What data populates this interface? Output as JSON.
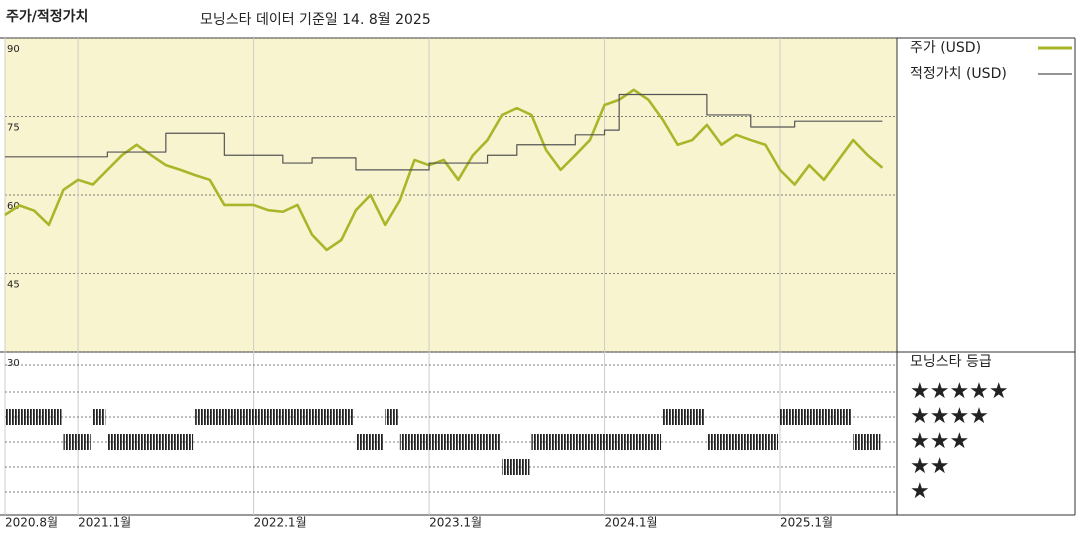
{
  "chart_data": {
    "type": "line",
    "title": "주가/적정가치",
    "subtitle": "모닝스타 데이터 기준일 14. 8월 2025",
    "xlim": [
      "2020-08",
      "2025-09"
    ],
    "xticks": [
      {
        "value": "2020-08",
        "label": "2020.8월"
      },
      {
        "value": "2021-01",
        "label": "2021.1월"
      },
      {
        "value": "2022-01",
        "label": "2022.1월"
      },
      {
        "value": "2023-01",
        "label": "2023.1월"
      },
      {
        "value": "2024-01",
        "label": "2024.1월"
      },
      {
        "value": "2025-01",
        "label": "2025.1월"
      }
    ],
    "ylim": [
      30,
      90
    ],
    "yticks": [
      90,
      75,
      60,
      45,
      30
    ],
    "grid": true,
    "series": [
      {
        "name": "주가 (USD)",
        "color": "#a9b62a",
        "step": false,
        "x": [
          "2020-08",
          "2020-09",
          "2020-10",
          "2020-11",
          "2020-12",
          "2021-01",
          "2021-02",
          "2021-03",
          "2021-04",
          "2021-05",
          "2021-06",
          "2021-07",
          "2021-08",
          "2021-09",
          "2021-10",
          "2021-11",
          "2021-12",
          "2022-01",
          "2022-02",
          "2022-03",
          "2022-04",
          "2022-05",
          "2022-06",
          "2022-07",
          "2022-08",
          "2022-09",
          "2022-10",
          "2022-11",
          "2022-12",
          "2023-01",
          "2023-02",
          "2023-03",
          "2023-04",
          "2023-05",
          "2023-06",
          "2023-07",
          "2023-08",
          "2023-09",
          "2023-10",
          "2023-11",
          "2023-12",
          "2024-01",
          "2024-02",
          "2024-03",
          "2024-04",
          "2024-05",
          "2024-06",
          "2024-07",
          "2024-08",
          "2024-09",
          "2024-10",
          "2024-11",
          "2024-12",
          "2025-01",
          "2025-02",
          "2025-03",
          "2025-04",
          "2025-05",
          "2025-06",
          "2025-07",
          "2025-08"
        ],
        "values": [
          56.2,
          58,
          57,
          54.3,
          61,
          62.9,
          62,
          64.8,
          67.6,
          69.6,
          67.6,
          65.7,
          64.8,
          63.8,
          62.9,
          58.1,
          58.1,
          58.1,
          57.1,
          56.8,
          58.1,
          52.4,
          49.5,
          51.4,
          57.1,
          60,
          54.3,
          59,
          66.7,
          65.7,
          66.7,
          62.9,
          67.6,
          70.5,
          75.3,
          76.6,
          75.3,
          68.6,
          64.8,
          67.6,
          70.5,
          77.2,
          78.2,
          80.1,
          78.2,
          74.3,
          69.6,
          70.5,
          73.4,
          69.6,
          71.5,
          70.5,
          69.6,
          64.8,
          62,
          65.7,
          62.9,
          66.7,
          70.5,
          67.6,
          65.2
        ]
      },
      {
        "name": "적정가치 (USD)",
        "color": "#555555",
        "step": true,
        "x": [
          "2020-08",
          "2021-03",
          "2021-07",
          "2021-11",
          "2022-03",
          "2022-05",
          "2022-08",
          "2023-01",
          "2023-05",
          "2023-07",
          "2023-11",
          "2024-01",
          "2024-02",
          "2024-08",
          "2024-11",
          "2025-02",
          "2025-08"
        ],
        "values": [
          67.3,
          68.2,
          71.8,
          67.6,
          66.1,
          67.1,
          64.8,
          66.1,
          67.6,
          69.6,
          71.5,
          72.4,
          79.2,
          75.3,
          73,
          74.1,
          74.1
        ]
      }
    ],
    "rating": {
      "title": "모닝스타 등급",
      "levels": [
        {
          "value": 5,
          "label": "★★★★★"
        },
        {
          "value": 4,
          "label": "★★★★"
        },
        {
          "value": 3,
          "label": "★★★"
        },
        {
          "value": 2,
          "label": "★★"
        },
        {
          "value": 1,
          "label": "★"
        }
      ],
      "x": [
        "2020-08",
        "2020-12",
        "2021-02",
        "2021-03",
        "2021-09",
        "2022-08",
        "2022-10",
        "2022-11",
        "2023-06",
        "2023-08",
        "2024-05",
        "2024-08",
        "2025-01",
        "2025-06"
      ],
      "values": [
        4,
        3,
        4,
        3,
        4,
        3,
        4,
        3,
        2,
        3,
        4,
        3,
        4,
        3
      ]
    }
  }
}
